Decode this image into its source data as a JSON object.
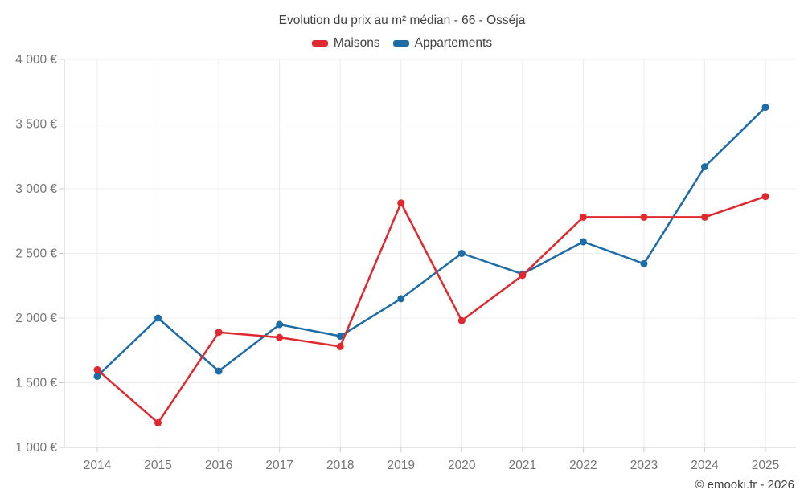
{
  "chart": {
    "title": "Evolution du prix au m² médian - 66 - Osséja",
    "credit": "© emooki.fr - 2026"
  },
  "chart_data": {
    "type": "line",
    "title": "Evolution du prix au m² médian - 66 - Osséja",
    "xlabel": "",
    "ylabel": "",
    "categories": [
      "2014",
      "2015",
      "2016",
      "2017",
      "2018",
      "2019",
      "2020",
      "2021",
      "2022",
      "2023",
      "2024",
      "2025"
    ],
    "series": [
      {
        "name": "Maisons",
        "color": "#e0282e",
        "values": [
          1600,
          1190,
          1890,
          1850,
          1780,
          2890,
          1980,
          2330,
          2780,
          2780,
          2780,
          2940
        ]
      },
      {
        "name": "Appartements",
        "color": "#1c6ca8",
        "values": [
          1550,
          2000,
          1590,
          1950,
          1860,
          2150,
          2500,
          2340,
          2590,
          2420,
          3170,
          3630
        ]
      }
    ],
    "ylim": [
      1000,
      4000
    ],
    "yticks": [
      {
        "value": 1000,
        "label": "1 000 €"
      },
      {
        "value": 1500,
        "label": "1 500 €"
      },
      {
        "value": 2000,
        "label": "2 000 €"
      },
      {
        "value": 2500,
        "label": "2 500 €"
      },
      {
        "value": 3000,
        "label": "3 000 €"
      },
      {
        "value": 3500,
        "label": "3 500 €"
      },
      {
        "value": 4000,
        "label": "4 000 €"
      }
    ],
    "grid": true,
    "legend_position": "top",
    "marker": "circle",
    "unit": "€"
  },
  "colors": {
    "grid": "#ececec",
    "axis": "#cccccc",
    "tick_label": "#757575",
    "text": "#424242",
    "background": "#ffffff"
  }
}
